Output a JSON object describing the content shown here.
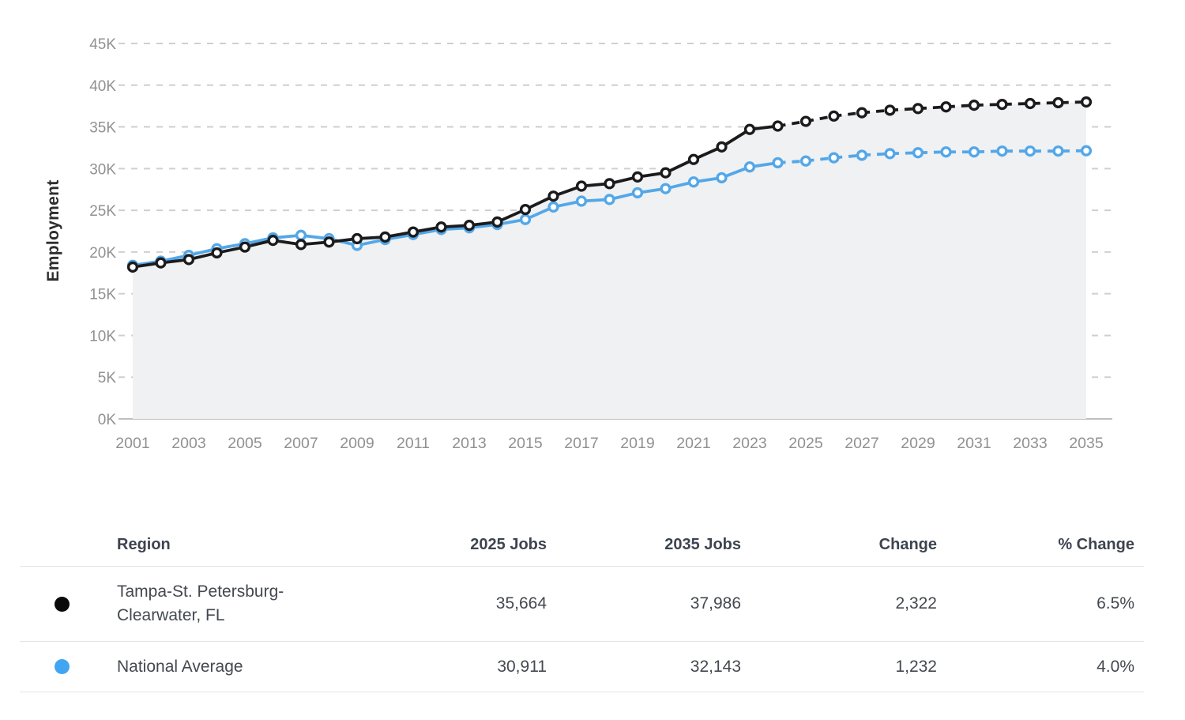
{
  "chart_data": {
    "type": "line",
    "title": "",
    "xlabel": "",
    "ylabel": "Employment",
    "x": [
      2001,
      2002,
      2003,
      2004,
      2005,
      2006,
      2007,
      2008,
      2009,
      2010,
      2011,
      2012,
      2013,
      2014,
      2015,
      2016,
      2017,
      2018,
      2019,
      2020,
      2021,
      2022,
      2023,
      2024,
      2025,
      2026,
      2027,
      2028,
      2029,
      2030,
      2031,
      2032,
      2033,
      2034,
      2035
    ],
    "x_tick_years": [
      2001,
      2003,
      2005,
      2007,
      2009,
      2011,
      2013,
      2015,
      2017,
      2019,
      2021,
      2023,
      2025,
      2027,
      2029,
      2031,
      2033,
      2035
    ],
    "y_ticks": [
      {
        "label": "0K",
        "value": 0
      },
      {
        "label": "5K",
        "value": 5000
      },
      {
        "label": "10K",
        "value": 10000
      },
      {
        "label": "15K",
        "value": 15000
      },
      {
        "label": "20K",
        "value": 20000
      },
      {
        "label": "25K",
        "value": 25000
      },
      {
        "label": "30K",
        "value": 30000
      },
      {
        "label": "35K",
        "value": 35000
      },
      {
        "label": "40K",
        "value": 40000
      },
      {
        "label": "45K",
        "value": 45000
      }
    ],
    "ylim": [
      0,
      45000
    ],
    "grid": "horizontal-dashed",
    "legend_position": "table-below",
    "projection_start_year": 2025,
    "area_series_index": 0,
    "area_fill": "#eff1f2",
    "grid_color": "#cfcfcf",
    "axis_color": "#aaaaaa",
    "tick_text_color": "#919191",
    "series": [
      {
        "name": "Tampa-St. Petersburg-Clearwater, FL",
        "color": "#1b1b1d",
        "solid_through": 2024,
        "values": [
          18200,
          18700,
          19100,
          19900,
          20600,
          21400,
          20900,
          21200,
          21600,
          21800,
          22400,
          23000,
          23200,
          23600,
          25100,
          26700,
          27900,
          28200,
          29000,
          29500,
          31100,
          32600,
          34700,
          35100,
          35664,
          36300,
          36700,
          37000,
          37200,
          37400,
          37600,
          37700,
          37800,
          37900,
          37986
        ]
      },
      {
        "name": "National Average",
        "color": "#54a7e8",
        "solid_through": 2024,
        "values": [
          18400,
          18900,
          19600,
          20400,
          21000,
          21700,
          22000,
          21600,
          20800,
          21500,
          22100,
          22700,
          22900,
          23300,
          23900,
          25400,
          26100,
          26300,
          27100,
          27600,
          28400,
          28900,
          30200,
          30700,
          30911,
          31300,
          31600,
          31800,
          31900,
          32000,
          32000,
          32100,
          32100,
          32100,
          32143
        ]
      }
    ]
  },
  "table": {
    "columns": [
      "Region",
      "2025 Jobs",
      "2035 Jobs",
      "Change",
      "% Change"
    ],
    "rows": [
      {
        "dot_color": "#0a0a0a",
        "region": "Tampa-St. Petersburg-Clearwater, FL",
        "jobs_2025": "35,664",
        "jobs_2035": "37,986",
        "change": "2,322",
        "pct_change": "6.5%"
      },
      {
        "dot_color": "#42a5f2",
        "region": "National Average",
        "jobs_2025": "30,911",
        "jobs_2035": "32,143",
        "change": "1,232",
        "pct_change": "4.0%"
      }
    ]
  }
}
